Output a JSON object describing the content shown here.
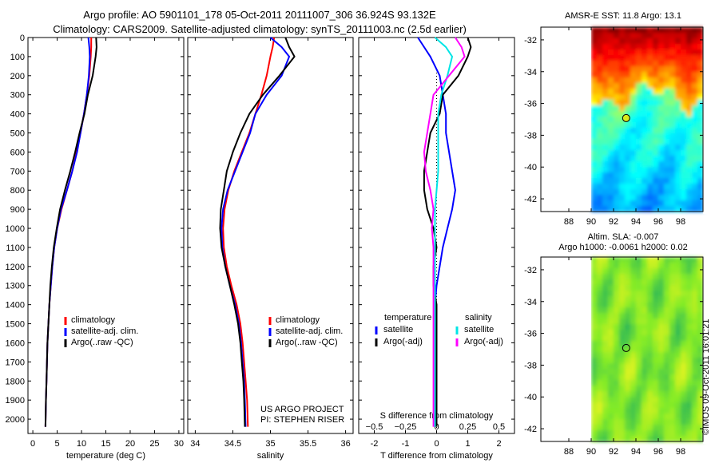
{
  "header": {
    "title_line1": "Argo profile: AO 5901101_178 05-Oct-2011 20111007_306 36.924S 93.132E",
    "title_line2": "Climatology: CARS2009. Satellite-adjusted climatology: synTS_20111003.nc (2.5d earlier)"
  },
  "credits": {
    "project": "US ARGO PROJECT",
    "pi": "PI: STEPHEN RISER"
  },
  "watermark": "©IMOS 09-Oct-2011 16:01:21",
  "colors": {
    "climatology": "#ff0000",
    "satellite": "#0000ff",
    "argo": "#000000",
    "satellite_salinity": "#00e5e5",
    "argo_salinity": "#ff00ff"
  },
  "chart_data": [
    {
      "type": "line",
      "xlabel": "temperature (deg C)",
      "ylabel": "",
      "xlim": [
        -1,
        31
      ],
      "ylim": [
        2075,
        0
      ],
      "xticks": [
        0,
        5,
        10,
        15,
        20,
        25,
        30
      ],
      "yticks": [
        0,
        100,
        200,
        300,
        400,
        500,
        600,
        700,
        800,
        900,
        1000,
        1100,
        1200,
        1300,
        1400,
        1500,
        1600,
        1700,
        1800,
        1900,
        2000
      ],
      "legend": [
        "climatology",
        "satellite-adj. clim.",
        "Argo(..raw -QC)"
      ],
      "legend_position": "lower-center",
      "series": [
        {
          "name": "climatology",
          "color": "#ff0000",
          "x": [
            12.0,
            12.0,
            11.9,
            11.6,
            11.1,
            10.5,
            9.8,
            9.0,
            8.1,
            7.0,
            5.9,
            5.0,
            4.4,
            4.0,
            3.7,
            3.4,
            3.2,
            3.0,
            2.9,
            2.8,
            2.7,
            2.6
          ],
          "y": [
            0,
            50,
            100,
            200,
            300,
            400,
            500,
            600,
            700,
            800,
            900,
            1000,
            1100,
            1200,
            1300,
            1400,
            1500,
            1600,
            1700,
            1800,
            1900,
            2040
          ]
        },
        {
          "name": "satellite-adj. clim.",
          "color": "#0000ff",
          "x": [
            11.4,
            11.6,
            11.7,
            11.5,
            11.1,
            10.5,
            9.8,
            9.1,
            8.1,
            7.0,
            5.8,
            5.0,
            4.4,
            4.0,
            3.7,
            3.4,
            3.2,
            3.0,
            2.9,
            2.8,
            2.7,
            2.6
          ],
          "y": [
            0,
            50,
            100,
            200,
            300,
            400,
            500,
            600,
            700,
            800,
            900,
            1000,
            1100,
            1200,
            1300,
            1400,
            1500,
            1600,
            1700,
            1800,
            1900,
            2040
          ]
        },
        {
          "name": "Argo(..raw -QC)",
          "color": "#000000",
          "x": [
            13.0,
            13.1,
            12.9,
            12.3,
            11.3,
            10.6,
            9.6,
            8.7,
            7.7,
            6.6,
            5.6,
            4.9,
            4.3,
            3.9,
            3.6,
            3.4,
            3.2,
            3.0,
            2.9,
            2.8,
            2.7,
            2.6
          ],
          "y": [
            0,
            50,
            100,
            200,
            300,
            400,
            500,
            600,
            700,
            800,
            900,
            1000,
            1100,
            1200,
            1300,
            1400,
            1500,
            1600,
            1700,
            1800,
            1900,
            2040
          ]
        }
      ]
    },
    {
      "type": "line",
      "xlabel": "salinity",
      "ylabel": "",
      "xlim": [
        33.9,
        36.1
      ],
      "ylim": [
        2075,
        0
      ],
      "xticks": [
        34,
        34.5,
        35,
        35.5,
        36
      ],
      "xticklabels": [
        "34",
        "34.5",
        "35",
        "35.5",
        "36"
      ],
      "legend": [
        "climatology",
        "satellite-adj. clim.",
        "Argo(..raw -QC)"
      ],
      "legend_position": "lower-center",
      "series": [
        {
          "name": "climatology",
          "color": "#ff0000",
          "x": [
            35.05,
            35.03,
            35.0,
            34.95,
            34.88,
            34.8,
            34.72,
            34.62,
            34.52,
            34.44,
            34.39,
            34.37,
            34.38,
            34.42,
            34.48,
            34.55,
            34.6,
            34.63,
            34.65,
            34.67,
            34.69,
            34.7
          ],
          "y": [
            0,
            50,
            100,
            200,
            300,
            400,
            500,
            600,
            700,
            800,
            900,
            1000,
            1100,
            1200,
            1300,
            1400,
            1500,
            1600,
            1700,
            1800,
            1900,
            2040
          ]
        },
        {
          "name": "satellite-adj. clim.",
          "color": "#0000ff",
          "x": [
            35.0,
            35.15,
            35.25,
            35.15,
            34.95,
            34.8,
            34.73,
            34.63,
            34.53,
            34.43,
            34.37,
            34.35,
            34.36,
            34.4,
            34.46,
            34.53,
            34.58,
            34.61,
            34.63,
            34.65,
            34.66,
            34.67
          ],
          "y": [
            0,
            50,
            100,
            200,
            300,
            400,
            500,
            600,
            700,
            800,
            900,
            1000,
            1100,
            1200,
            1300,
            1400,
            1500,
            1600,
            1700,
            1800,
            1900,
            2040
          ]
        },
        {
          "name": "Argo(..raw -QC)",
          "color": "#000000",
          "x": [
            35.2,
            35.25,
            35.32,
            35.12,
            34.9,
            34.72,
            34.6,
            34.5,
            34.42,
            34.38,
            34.34,
            34.33,
            34.35,
            34.4,
            34.46,
            34.52,
            34.57,
            34.6,
            34.62,
            34.64,
            34.65,
            34.66
          ],
          "y": [
            0,
            50,
            100,
            200,
            300,
            400,
            500,
            600,
            700,
            800,
            900,
            1000,
            1100,
            1200,
            1300,
            1400,
            1500,
            1600,
            1700,
            1800,
            1900,
            2040
          ]
        }
      ]
    },
    {
      "type": "line",
      "xlabel": "T difference from climatology",
      "top_label": "S difference from climatology",
      "ylabel": "",
      "xlim": [
        -2.5,
        2.5
      ],
      "ylim": [
        2075,
        0
      ],
      "xticks": [
        -2,
        -1,
        0,
        1,
        2
      ],
      "s_ticks": [
        -0.5,
        -0.25,
        0,
        0.25,
        0.5
      ],
      "s_ticklabels": [
        "−0.5",
        "−0.25",
        "0",
        "0.25",
        "0.5"
      ],
      "s_scale_factor": 4,
      "legend_groups": [
        {
          "header": "temperature",
          "items": [
            "satellite",
            "Argo(-adj)"
          ]
        },
        {
          "header": "salinity",
          "items": [
            "satellite",
            "Argo(-adj)"
          ]
        }
      ],
      "series": [
        {
          "name": "satellite",
          "group": "temperature",
          "color": "#0000ff",
          "x": [
            -0.6,
            -0.4,
            -0.2,
            0.1,
            0.2,
            0.3,
            0.3,
            0.4,
            0.5,
            0.6,
            0.5,
            0.35,
            0.2,
            0.1,
            0.0,
            -0.05,
            -0.05,
            -0.05,
            -0.05,
            -0.05,
            -0.05,
            -0.05
          ],
          "y": [
            0,
            50,
            100,
            200,
            300,
            400,
            500,
            600,
            700,
            800,
            900,
            1000,
            1100,
            1200,
            1300,
            1400,
            1500,
            1600,
            1700,
            1800,
            1900,
            2040
          ]
        },
        {
          "name": "Argo(-adj)",
          "group": "temperature",
          "color": "#000000",
          "x": [
            1.0,
            1.1,
            1.0,
            0.7,
            0.2,
            0.1,
            -0.2,
            -0.3,
            -0.4,
            -0.4,
            -0.3,
            -0.1,
            0.0,
            -0.1,
            -0.1,
            0.0,
            0.0,
            0.0,
            0.0,
            0.0,
            0.0,
            0.0
          ],
          "y": [
            0,
            50,
            100,
            200,
            300,
            400,
            500,
            600,
            700,
            800,
            900,
            1000,
            1100,
            1200,
            1300,
            1400,
            1500,
            1600,
            1700,
            1800,
            1900,
            2040
          ]
        },
        {
          "name": "satellite",
          "group": "salinity",
          "color": "#00e5e5",
          "x": [
            -0.05,
            0.3,
            0.5,
            0.35,
            0.15,
            0.05,
            0.05,
            0.05,
            0.05,
            0.0,
            -0.05,
            -0.05,
            -0.05,
            -0.05,
            -0.05,
            -0.05,
            -0.05,
            -0.05,
            -0.05,
            -0.05,
            -0.05,
            -0.05
          ],
          "y": [
            0,
            50,
            100,
            200,
            300,
            400,
            500,
            600,
            700,
            800,
            900,
            1000,
            1100,
            1200,
            1300,
            1400,
            1500,
            1600,
            1700,
            1800,
            1900,
            2040
          ]
        },
        {
          "name": "Argo(-adj)",
          "group": "salinity",
          "color": "#ff00ff",
          "x": [
            0.6,
            0.8,
            0.9,
            0.4,
            -0.1,
            -0.2,
            -0.3,
            -0.4,
            -0.35,
            -0.2,
            -0.1,
            -0.15,
            -0.1,
            -0.1,
            -0.1,
            -0.1,
            -0.1,
            -0.1,
            -0.1,
            -0.1,
            -0.1,
            -0.1
          ],
          "y": [
            0,
            50,
            100,
            200,
            300,
            400,
            500,
            600,
            700,
            800,
            900,
            1000,
            1100,
            1200,
            1300,
            1400,
            1500,
            1600,
            1700,
            1800,
            1900,
            2040
          ]
        }
      ]
    },
    {
      "type": "heatmap",
      "title": "AMSR-E SST: 11.8 Argo: 13.1",
      "xlim": [
        85.5,
        100
      ],
      "ylim": [
        -42.8,
        -31.2
      ],
      "xticks": [
        88,
        90,
        92,
        94,
        96,
        98
      ],
      "yticks": [
        -32,
        -34,
        -36,
        -38,
        -40,
        -42
      ],
      "data_xlim": [
        90,
        100
      ],
      "colormap": "jet",
      "marker": {
        "x": 93.13,
        "y": -36.92,
        "fill": "#d8e81c"
      }
    },
    {
      "type": "heatmap",
      "title_line1": "Altim. SLA: -0.007",
      "title_line2": "Argo h1000: -0.0061 h2000: 0.02",
      "xlim": [
        85.5,
        100
      ],
      "ylim": [
        -42.8,
        -31.2
      ],
      "xticks": [
        88,
        90,
        92,
        94,
        96,
        98
      ],
      "yticks": [
        -32,
        -34,
        -36,
        -38,
        -40,
        -42
      ],
      "data_xlim": [
        90,
        100
      ],
      "colormap": "green-yellow",
      "marker": {
        "x": 93.13,
        "y": -36.92,
        "fill": "none"
      }
    }
  ]
}
